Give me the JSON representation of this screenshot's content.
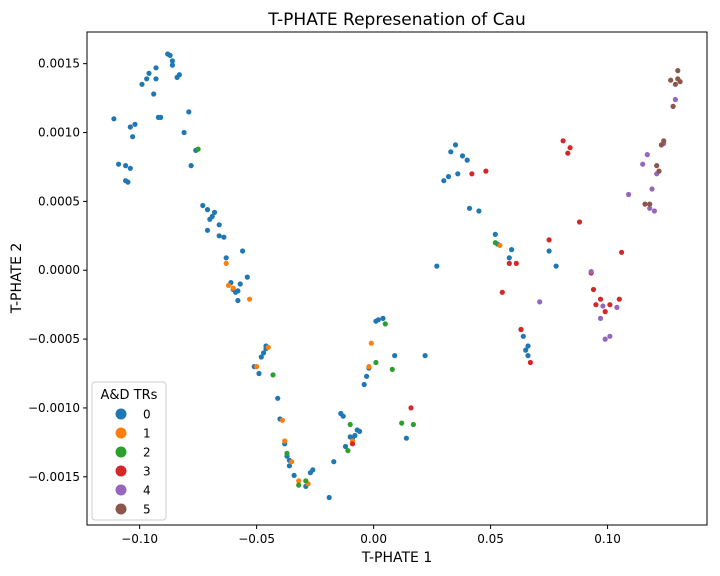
{
  "chart_data": {
    "type": "scatter",
    "title": "T-PHATE Represenation of Cau",
    "xlabel": "T-PHATE 1",
    "ylabel": "T-PHATE 2",
    "xlim": [
      -0.1225,
      0.1425
    ],
    "ylim": [
      -0.00185,
      0.00173
    ],
    "x_ticks": [
      -0.1,
      -0.05,
      0.0,
      0.05,
      0.1
    ],
    "x_tick_labels": [
      "−0.10",
      "−0.05",
      "0.00",
      "0.05",
      "0.10"
    ],
    "y_ticks": [
      -0.0015,
      -0.001,
      -0.0005,
      0.0,
      0.0005,
      0.001,
      0.0015
    ],
    "y_tick_labels": [
      "−0.0015",
      "−0.0010",
      "−0.0005",
      "0.0000",
      "0.0005",
      "0.0010",
      "0.0015"
    ],
    "grid": false,
    "legend": {
      "title": "A&D TRs",
      "position": "lower-left"
    },
    "series": [
      {
        "name": "0",
        "color": "#1f77b4",
        "points": [
          [
            -0.111,
            0.0011
          ],
          [
            -0.104,
            0.00104
          ],
          [
            -0.103,
            0.00097
          ],
          [
            -0.102,
            0.00106
          ],
          [
            -0.109,
            0.00077
          ],
          [
            -0.106,
            0.00076
          ],
          [
            -0.104,
            0.00074
          ],
          [
            -0.106,
            0.00065
          ],
          [
            -0.105,
            0.00064
          ],
          [
            -0.099,
            0.00135
          ],
          [
            -0.096,
            0.00143
          ],
          [
            -0.097,
            0.00139
          ],
          [
            -0.094,
            0.00128
          ],
          [
            -0.093,
            0.00147
          ],
          [
            -0.093,
            0.00139
          ],
          [
            -0.091,
            0.00111
          ],
          [
            -0.092,
            0.00111
          ],
          [
            -0.088,
            0.00157
          ],
          [
            -0.087,
            0.00156
          ],
          [
            -0.086,
            0.00152
          ],
          [
            -0.086,
            0.00149
          ],
          [
            -0.084,
            0.0014
          ],
          [
            -0.083,
            0.00142
          ],
          [
            -0.081,
            0.001
          ],
          [
            -0.079,
            0.00115
          ],
          [
            -0.078,
            0.00076
          ],
          [
            -0.076,
            0.00087
          ],
          [
            -0.073,
            0.00047
          ],
          [
            -0.071,
            0.00044
          ],
          [
            -0.07,
            0.00037
          ],
          [
            -0.071,
            0.00029
          ],
          [
            -0.069,
            0.00039
          ],
          [
            -0.068,
            0.00042
          ],
          [
            -0.066,
            0.00033
          ],
          [
            -0.066,
            0.00025
          ],
          [
            -0.064,
            0.00024
          ],
          [
            -0.063,
            9e-05
          ],
          [
            -0.061,
            -9e-05
          ],
          [
            -0.06,
            -0.00014
          ],
          [
            -0.059,
            -0.00016
          ],
          [
            -0.058,
            -0.00015
          ],
          [
            -0.058,
            -0.00022
          ],
          [
            -0.057,
            -0.0001
          ],
          [
            -0.056,
            0.00014
          ],
          [
            -0.054,
            -5e-05
          ],
          [
            -0.051,
            -0.0007
          ],
          [
            -0.049,
            -0.00075
          ],
          [
            -0.048,
            -0.00063
          ],
          [
            -0.047,
            -0.0006
          ],
          [
            -0.046,
            -0.00057
          ],
          [
            -0.046,
            -0.00055
          ],
          [
            -0.041,
            -0.00093
          ],
          [
            -0.04,
            -0.00108
          ],
          [
            -0.038,
            -0.00126
          ],
          [
            -0.037,
            -0.00135
          ],
          [
            -0.036,
            -0.00138
          ],
          [
            -0.036,
            -0.00142
          ],
          [
            -0.034,
            -0.00149
          ],
          [
            -0.029,
            -0.00157
          ],
          [
            -0.027,
            -0.00147
          ],
          [
            -0.026,
            -0.00145
          ],
          [
            -0.019,
            -0.00165
          ],
          [
            -0.017,
            -0.00139
          ],
          [
            -0.014,
            -0.00104
          ],
          [
            -0.013,
            -0.00106
          ],
          [
            -0.012,
            -0.00128
          ],
          [
            -0.01,
            -0.00121
          ],
          [
            -0.009,
            -0.00122
          ],
          [
            -0.008,
            -0.0012
          ],
          [
            -0.007,
            -0.00116
          ],
          [
            -0.006,
            -0.00117
          ],
          [
            -0.004,
            -0.00083
          ],
          [
            -0.003,
            -0.00077
          ],
          [
            -0.002,
            -0.00071
          ],
          [
            0.001,
            -0.00037
          ],
          [
            0.002,
            -0.00036
          ],
          [
            0.004,
            -0.00035
          ],
          [
            0.009,
            -0.00062
          ],
          [
            0.014,
            -0.00122
          ],
          [
            0.022,
            -0.00062
          ],
          [
            0.027,
            3e-05
          ],
          [
            0.03,
            0.00065
          ],
          [
            0.032,
            0.00068
          ],
          [
            0.033,
            0.00086
          ],
          [
            0.035,
            0.00091
          ],
          [
            0.036,
            0.0007
          ],
          [
            0.038,
            0.00083
          ],
          [
            0.04,
            0.0008
          ],
          [
            0.041,
            0.00045
          ],
          [
            0.045,
            0.00043
          ],
          [
            0.052,
            0.00026
          ],
          [
            0.053,
            0.00019
          ],
          [
            0.058,
            9e-05
          ],
          [
            0.059,
            0.00015
          ],
          [
            0.063,
            -0.00043
          ],
          [
            0.064,
            -0.00048
          ],
          [
            0.065,
            -0.00058
          ],
          [
            0.066,
            -0.00055
          ],
          [
            0.066,
            -0.00062
          ],
          [
            0.075,
            0.00014
          ],
          [
            0.078,
            3e-05
          ]
        ]
      },
      {
        "name": "1",
        "color": "#ff7f0e",
        "points": [
          [
            -0.063,
            5e-05
          ],
          [
            -0.062,
            -0.00011
          ],
          [
            -0.06,
            -0.00013
          ],
          [
            -0.053,
            -0.00021
          ],
          [
            -0.05,
            -0.0007
          ],
          [
            -0.045,
            -0.00056
          ],
          [
            -0.039,
            -0.00109
          ],
          [
            -0.038,
            -0.00124
          ],
          [
            -0.035,
            -0.00139
          ],
          [
            -0.032,
            -0.00153
          ],
          [
            -0.028,
            -0.00155
          ],
          [
            -0.002,
            -0.0007
          ],
          [
            -0.001,
            -0.00053
          ],
          [
            -0.009,
            -0.00124
          ],
          [
            0.054,
            0.00018
          ]
        ]
      },
      {
        "name": "2",
        "color": "#2ca02c",
        "points": [
          [
            -0.075,
            0.00088
          ],
          [
            -0.043,
            -0.00076
          ],
          [
            -0.037,
            -0.00133
          ],
          [
            -0.032,
            -0.00156
          ],
          [
            -0.029,
            -0.00153
          ],
          [
            -0.011,
            -0.00131
          ],
          [
            -0.01,
            -0.00112
          ],
          [
            0.001,
            -0.00067
          ],
          [
            0.005,
            -0.00039
          ],
          [
            0.008,
            -0.00072
          ],
          [
            0.012,
            -0.00111
          ],
          [
            0.017,
            -0.00112
          ],
          [
            0.052,
            0.0002
          ]
        ]
      },
      {
        "name": "3",
        "color": "#d62728",
        "points": [
          [
            0.042,
            0.0007
          ],
          [
            0.048,
            0.00072
          ],
          [
            0.055,
            -0.00016
          ],
          [
            0.058,
            5e-05
          ],
          [
            0.061,
            5e-05
          ],
          [
            0.063,
            -0.00043
          ],
          [
            0.067,
            -0.00067
          ],
          [
            0.075,
            0.00022
          ],
          [
            0.081,
            0.00094
          ],
          [
            0.083,
            0.00085
          ],
          [
            0.084,
            0.00089
          ],
          [
            0.088,
            0.00035
          ],
          [
            0.093,
            -2e-05
          ],
          [
            0.094,
            -0.00014
          ],
          [
            0.095,
            -0.00025
          ],
          [
            0.097,
            -0.00021
          ],
          [
            0.099,
            -0.0003
          ],
          [
            0.101,
            -0.00025
          ],
          [
            0.105,
            -0.00021
          ],
          [
            0.106,
            0.00013
          ],
          [
            -0.009,
            -0.00126
          ],
          [
            0.016,
            -0.001
          ]
        ]
      },
      {
        "name": "4",
        "color": "#9467bd",
        "points": [
          [
            0.071,
            -0.00023
          ],
          [
            0.093,
            -1e-05
          ],
          [
            0.097,
            -0.00035
          ],
          [
            0.098,
            -0.00026
          ],
          [
            0.099,
            -0.0005
          ],
          [
            0.101,
            -0.00048
          ],
          [
            0.104,
            -0.00027
          ],
          [
            0.109,
            0.00055
          ],
          [
            0.115,
            0.00077
          ],
          [
            0.117,
            0.00084
          ],
          [
            0.118,
            0.00045
          ],
          [
            0.119,
            0.00059
          ],
          [
            0.12,
            0.00043
          ],
          [
            0.121,
            0.0007
          ],
          [
            0.124,
            0.00092
          ],
          [
            0.129,
            0.00124
          ]
        ]
      },
      {
        "name": "5",
        "color": "#8c564b",
        "points": [
          [
            0.116,
            0.00048
          ],
          [
            0.118,
            0.00048
          ],
          [
            0.121,
            0.00076
          ],
          [
            0.122,
            0.00072
          ],
          [
            0.123,
            0.00091
          ],
          [
            0.124,
            0.00094
          ],
          [
            0.127,
            0.00138
          ],
          [
            0.128,
            0.00119
          ],
          [
            0.129,
            0.00135
          ],
          [
            0.13,
            0.00139
          ],
          [
            0.13,
            0.00145
          ],
          [
            0.131,
            0.00137
          ]
        ]
      }
    ]
  }
}
